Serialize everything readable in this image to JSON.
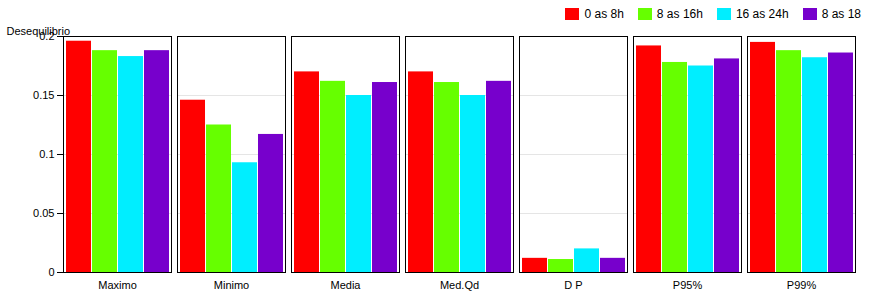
{
  "chart_data": {
    "type": "bar",
    "categories": [
      "Maximo",
      "Minimo",
      "Media",
      "Med.Qd",
      "D P",
      "P95%",
      "P99%"
    ],
    "series": [
      {
        "name": "0 as 8h",
        "color": "#ff0000",
        "values": [
          0.196,
          0.146,
          0.17,
          0.17,
          0.012,
          0.192,
          0.195
        ]
      },
      {
        "name": "8 as 16h",
        "color": "#66ff00",
        "values": [
          0.188,
          0.125,
          0.162,
          0.161,
          0.011,
          0.178,
          0.188
        ]
      },
      {
        "name": "16 as 24h",
        "color": "#00eeff",
        "values": [
          0.183,
          0.093,
          0.15,
          0.15,
          0.02,
          0.175,
          0.182
        ]
      },
      {
        "name": "8 as 18",
        "color": "#7700cc",
        "values": [
          0.188,
          0.117,
          0.161,
          0.162,
          0.012,
          0.181,
          0.186
        ]
      }
    ],
    "ylabel": "Desequilibrio",
    "ylim": [
      0,
      0.2
    ],
    "yticks": [
      0,
      0.05,
      0.1,
      0.15,
      0.2
    ],
    "grid": true,
    "legend": "upper right"
  }
}
